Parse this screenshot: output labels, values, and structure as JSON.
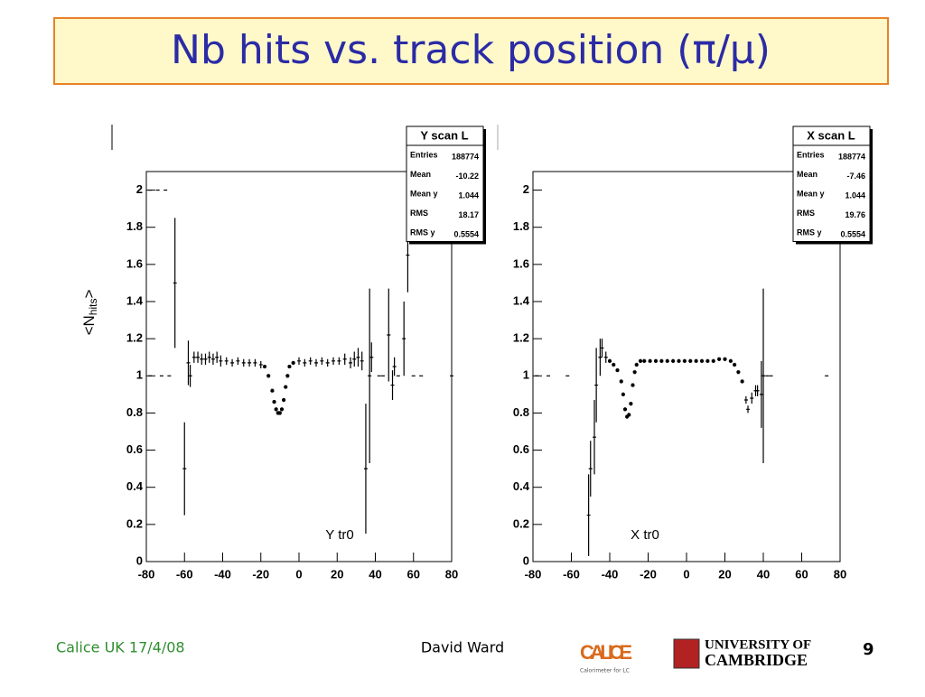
{
  "slide": {
    "title": "Nb hits vs. track position (π/μ)",
    "footer_left": "Calice UK 17/4/08",
    "footer_center": "David Ward",
    "page_number": "9",
    "logo_calice": "CALICE",
    "logo_calice_sub": "Calorimeter for LC",
    "logo_cam_1": "UNIVERSITY OF",
    "logo_cam_2": "CAMBRIDGE"
  },
  "chart_data": [
    {
      "type": "errorbar",
      "ylabel": [
        "<N",
        "hits",
        ">"
      ],
      "annotation": "Y tr0",
      "stats": {
        "title": "Y scan L",
        "rows": [
          [
            "Entries",
            "188774"
          ],
          [
            "Mean",
            "-10.22"
          ],
          [
            "Mean y",
            "1.044"
          ],
          [
            "RMS",
            "18.17"
          ],
          [
            "RMS y",
            "0.5554"
          ]
        ]
      },
      "xlim": [
        -80,
        80
      ],
      "ylim": [
        0,
        2.1
      ],
      "xticks": [
        -80,
        -60,
        -40,
        -20,
        0,
        20,
        40,
        60,
        80
      ],
      "yticks": [
        0,
        0.2,
        0.4,
        0.6,
        0.8,
        1,
        1.2,
        1.4,
        1.6,
        1.8,
        2
      ],
      "color": "#000000",
      "x": [
        -78,
        -74,
        -70,
        -78,
        -72,
        -68,
        -65,
        -60,
        -58,
        -57,
        -55,
        -53,
        -51,
        -49,
        -47,
        -45,
        -43,
        -41,
        -38,
        -35,
        -32,
        -29,
        -26,
        -23,
        -20,
        -18,
        -16,
        -14,
        -13,
        -12,
        -11,
        -10,
        -9,
        -8,
        -7,
        -6,
        -5,
        -3,
        0,
        3,
        6,
        9,
        12,
        15,
        18,
        21,
        24,
        27,
        29,
        31,
        33,
        35,
        37,
        38,
        42,
        44,
        47,
        49,
        50,
        52,
        55,
        57,
        60,
        64,
        80
      ],
      "values": [
        2,
        2,
        2,
        1,
        1,
        1,
        1.5,
        0.5,
        1.07,
        1.0,
        1.1,
        1.1,
        1.09,
        1.09,
        1.1,
        1.09,
        1.1,
        1.08,
        1.08,
        1.07,
        1.08,
        1.07,
        1.07,
        1.07,
        1.06,
        1.05,
        1.0,
        0.92,
        0.86,
        0.82,
        0.8,
        0.8,
        0.82,
        0.87,
        0.94,
        1.0,
        1.05,
        1.07,
        1.08,
        1.07,
        1.08,
        1.07,
        1.08,
        1.07,
        1.08,
        1.08,
        1.09,
        1.07,
        1.09,
        1.1,
        1.08,
        0.5,
        1.0,
        1.1,
        1.0,
        1.0,
        1.22,
        0.95,
        1.05,
        1.0,
        1.2,
        1.65,
        1,
        1,
        1
      ],
      "errors": [
        0,
        0,
        0,
        0,
        0,
        0,
        0.35,
        0.25,
        0.12,
        0.06,
        0.03,
        0.03,
        0.03,
        0.03,
        0.03,
        0.03,
        0.03,
        0.03,
        0.02,
        0.02,
        0.02,
        0.02,
        0.02,
        0.02,
        0.02,
        0.01,
        0.01,
        0.01,
        0.01,
        0.01,
        0.01,
        0.01,
        0.01,
        0.01,
        0.01,
        0.01,
        0.01,
        0.01,
        0.02,
        0.02,
        0.02,
        0.02,
        0.02,
        0.02,
        0.02,
        0.02,
        0.03,
        0.03,
        0.04,
        0.05,
        0.05,
        0.35,
        0.47,
        0.08,
        0,
        0,
        0.25,
        0.08,
        0.05,
        0,
        0.2,
        0.2,
        0,
        0,
        0
      ]
    },
    {
      "type": "errorbar",
      "annotation": "X tr0",
      "stats": {
        "title": "X scan L",
        "rows": [
          [
            "Entries",
            "188774"
          ],
          [
            "Mean",
            "-7.46"
          ],
          [
            "Mean y",
            "1.044"
          ],
          [
            "RMS",
            "19.76"
          ],
          [
            "RMS y",
            "0.5554"
          ]
        ]
      },
      "xlim": [
        -80,
        80
      ],
      "ylim": [
        0,
        2.1
      ],
      "xticks": [
        -80,
        -60,
        -40,
        -20,
        0,
        20,
        40,
        60,
        80
      ],
      "yticks": [
        0,
        0.2,
        0.4,
        0.6,
        0.8,
        1,
        1.2,
        1.4,
        1.6,
        1.8,
        2
      ],
      "color": "#000000",
      "x": [
        -78,
        -72,
        -62,
        -51,
        -50,
        -48,
        -47,
        -45,
        -44,
        -42,
        -40,
        -38,
        -36,
        -34,
        -33,
        -32,
        -31,
        -30,
        -29,
        -28,
        -27,
        -26,
        -24,
        -22,
        -19,
        -16,
        -13,
        -10,
        -7,
        -4,
        -1,
        2,
        5,
        8,
        11,
        14,
        17,
        20,
        23,
        25,
        27,
        29,
        31,
        32,
        34,
        36,
        37,
        39,
        40,
        42,
        44,
        73
      ],
      "values": [
        1,
        1,
        1,
        0.25,
        0.5,
        0.67,
        0.95,
        1.1,
        1.15,
        1.1,
        1.08,
        1.06,
        1.03,
        0.97,
        0.9,
        0.82,
        0.78,
        0.79,
        0.85,
        0.95,
        1.02,
        1.06,
        1.08,
        1.08,
        1.08,
        1.08,
        1.08,
        1.08,
        1.08,
        1.08,
        1.08,
        1.08,
        1.08,
        1.08,
        1.08,
        1.08,
        1.09,
        1.09,
        1.08,
        1.06,
        1.02,
        0.97,
        0.87,
        0.82,
        0.88,
        0.92,
        0.92,
        0.9,
        1.0,
        1,
        1,
        1
      ],
      "errors": [
        0,
        0,
        0,
        0.22,
        0.15,
        0.2,
        0.2,
        0.1,
        0.05,
        0.03,
        0.01,
        0.01,
        0.01,
        0.01,
        0.01,
        0.01,
        0.01,
        0.01,
        0.01,
        0.01,
        0.01,
        0.01,
        0.01,
        0.01,
        0.01,
        0.01,
        0.01,
        0.01,
        0.01,
        0.01,
        0.01,
        0.01,
        0.01,
        0.01,
        0.01,
        0.01,
        0.01,
        0.01,
        0.01,
        0.01,
        0.01,
        0.01,
        0.02,
        0.02,
        0.03,
        0.03,
        0.03,
        0.18,
        0.47,
        0,
        0,
        0
      ]
    }
  ]
}
